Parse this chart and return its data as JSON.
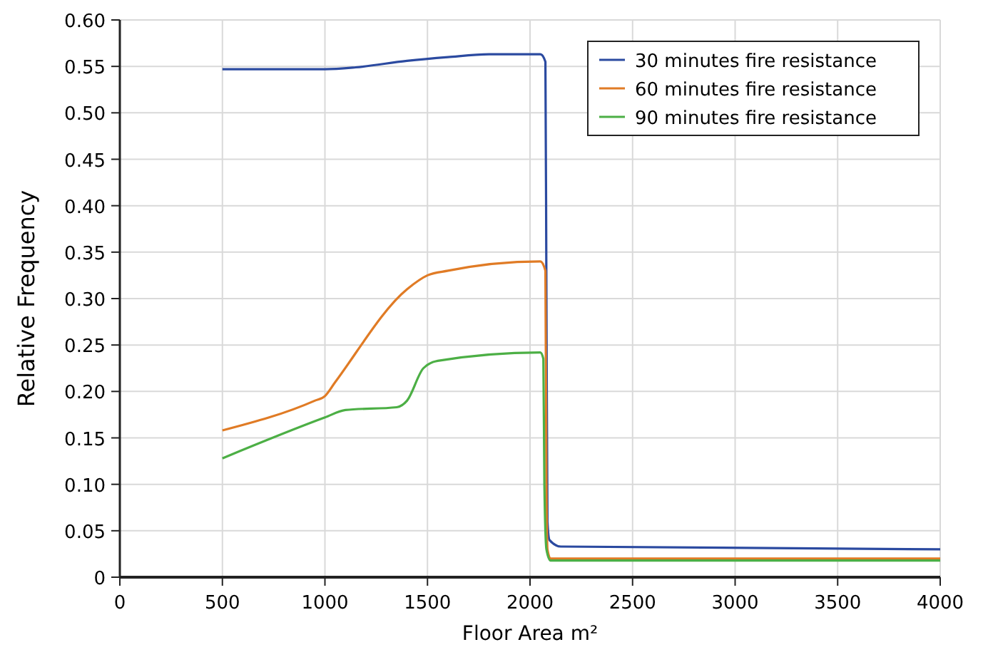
{
  "chart_data": {
    "type": "line",
    "xlabel": "Floor Area m²",
    "ylabel": "Relative Frequency",
    "xlim": [
      0,
      4000
    ],
    "xticks": [
      0,
      500,
      1000,
      1500,
      2000,
      2500,
      3000,
      3500,
      4000
    ],
    "ylim": [
      0,
      0.6
    ],
    "yticks": [
      0,
      {
        "value": 0.05,
        "label": "0.05"
      },
      {
        "value": 0.1,
        "label": "0.10"
      },
      {
        "value": 0.15,
        "label": "0.15"
      },
      {
        "value": 0.2,
        "label": "0.20"
      },
      {
        "value": 0.25,
        "label": "0.25"
      },
      {
        "value": 0.3,
        "label": "0.30"
      },
      {
        "value": 0.35,
        "label": "0.35"
      },
      {
        "value": 0.4,
        "label": "0.40"
      },
      {
        "value": 0.45,
        "label": "0.45"
      },
      {
        "value": 0.5,
        "label": "0.50"
      },
      {
        "value": 0.55,
        "label": "0.55"
      },
      {
        "value": 0.6,
        "label": "0.60"
      }
    ],
    "grid": true,
    "legend": "top right",
    "marker": "none",
    "line_style": "solid",
    "series": [
      {
        "name": "30 minutes fire resistance",
        "color": "#2b4aa0",
        "x": [
          500,
          1000,
          1150,
          1400,
          1600,
          1800,
          2050,
          2075,
          2080,
          2085,
          2095,
          2150,
          4000
        ],
        "values": [
          0.547,
          0.547,
          0.549,
          0.556,
          0.56,
          0.563,
          0.563,
          0.555,
          0.3,
          0.06,
          0.04,
          0.033,
          0.03
        ]
      },
      {
        "name": "60 minutes fire resistance",
        "color": "#e07b25",
        "x": [
          500,
          950,
          1000,
          1050,
          1400,
          1500,
          1600,
          2050,
          2075,
          2080,
          2085,
          2100,
          4000
        ],
        "values": [
          0.158,
          0.19,
          0.195,
          0.21,
          0.31,
          0.325,
          0.33,
          0.34,
          0.33,
          0.1,
          0.03,
          0.02,
          0.02
        ]
      },
      {
        "name": "90 minutes fire resistance",
        "color": "#4caf45",
        "x": [
          500,
          1000,
          1100,
          1350,
          1400,
          1480,
          1550,
          2050,
          2065,
          2070,
          2080,
          2100,
          4000
        ],
        "values": [
          0.128,
          0.172,
          0.18,
          0.183,
          0.19,
          0.225,
          0.233,
          0.242,
          0.235,
          0.1,
          0.03,
          0.018,
          0.018
        ]
      }
    ]
  }
}
